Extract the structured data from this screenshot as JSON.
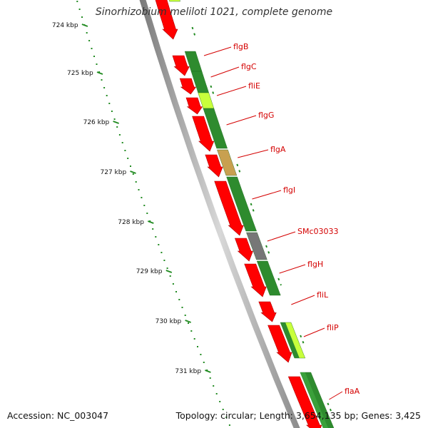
{
  "title": "Sinorhizobium meliloti 1021, complete genome",
  "accession_text": "Accession: NC_003047",
  "summary_text": "Topology: circular; Length: 3,654,135 bp; Genes: 3,425",
  "kbp_ticks": [
    "724 kbp",
    "725 kbp",
    "726 kbp",
    "727 kbp",
    "728 kbp",
    "729 kbp",
    "730 kbp",
    "731 kbp"
  ],
  "gene_labels": [
    "flgB",
    "flgC",
    "fliE",
    "flgG",
    "flgA",
    "flgI",
    "SMc03033",
    "flgH",
    "fliL",
    "fliP",
    "flaA"
  ],
  "colors": {
    "cds_red": "#ff0000",
    "cog_green": "#2e8b2e",
    "cog_light_green": "#c8ff3c",
    "cog_tan": "#c8a050",
    "cog_gray": "#777777",
    "label_red": "#d40000",
    "tick_green": "#228b22",
    "backbone": "#888888"
  }
}
